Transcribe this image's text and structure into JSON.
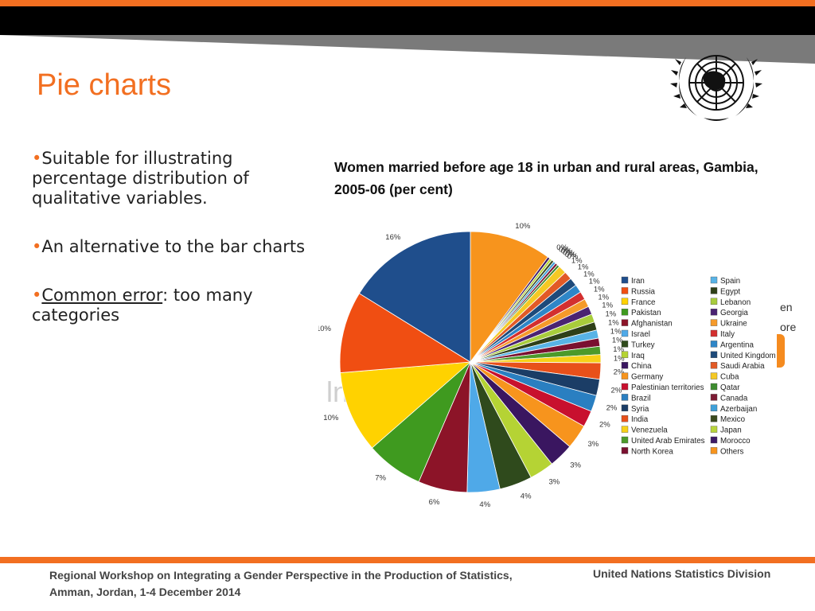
{
  "slide": {
    "title": "Pie charts",
    "bullets": [
      {
        "text": "Suitable for illustrating percentage distribution of qualitative variables."
      },
      {
        "text": "An alternative to the bar charts"
      },
      {
        "underlined": "Common error",
        "rest": ": too many categories"
      }
    ],
    "behind_fragments": [
      "en",
      "ore"
    ],
    "watermark": "ln.wor",
    "footer": {
      "left": "Regional Workshop on Integrating a Gender Perspective in the Production of Statistics, Amman, Jordan, 1-4 December 2014",
      "right": "United Nations Statistics Division"
    },
    "accent_color": "#f26f21"
  },
  "chart_data": {
    "type": "pie",
    "title": "Women married before age 18 in urban and rural areas, Gambia, 2005-06 (per cent)",
    "categories": [
      "Others",
      "Iran",
      "Russia",
      "France",
      "Pakistan",
      "Afghanistan",
      "Israel",
      "Turkey",
      "Iraq",
      "China",
      "Germany",
      "Palestinian territories",
      "Brazil",
      "Syria",
      "India",
      "Venezuela",
      "United Arab Emirates",
      "North Korea",
      "Spain",
      "Egypt",
      "Lebanon",
      "Georgia",
      "Ukraine",
      "Italy",
      "Argentina",
      "United Kingdom",
      "Saudi Arabia",
      "Cuba",
      "Qatar",
      "Canada",
      "Azerbaijan",
      "Mexico",
      "Japan",
      "Morocco"
    ],
    "values": [
      10,
      16,
      10,
      10,
      7,
      6,
      4,
      4,
      3,
      3,
      3,
      2,
      2,
      2,
      2,
      1,
      1,
      1,
      1,
      1,
      1,
      1,
      1,
      1,
      1,
      1,
      1,
      1,
      0,
      0,
      0,
      0,
      0,
      0
    ],
    "slice_order": [
      "Others",
      "Morocco",
      "Japan",
      "Mexico",
      "Azerbaijan",
      "Canada",
      "Qatar",
      "Cuba",
      "Saudi Arabia",
      "United Kingdom",
      "Argentina",
      "Italy",
      "Ukraine",
      "Georgia",
      "Lebanon",
      "Egypt",
      "Spain",
      "North Korea",
      "United Arab Emirates",
      "Venezuela",
      "India",
      "Syria",
      "Brazil",
      "Palestinian territories",
      "Germany",
      "China",
      "Iraq",
      "Turkey",
      "Israel",
      "Afghanistan",
      "Pakistan",
      "France",
      "Russia",
      "Iran"
    ],
    "legend_columns": [
      [
        "Iran",
        "Russia",
        "France",
        "Pakistan",
        "Afghanistan",
        "Israel",
        "Turkey",
        "Iraq",
        "China",
        "Germany",
        "Palestinian territories",
        "Brazil",
        "Syria",
        "India",
        "Venezuela",
        "United Arab Emirates",
        "North Korea"
      ],
      [
        "Spain",
        "Egypt",
        "Lebanon",
        "Georgia",
        "Ukraine",
        "Italy",
        "Argentina",
        "United Kingdom",
        "Saudi Arabia",
        "Cuba",
        "Qatar",
        "Canada",
        "Azerbaijan",
        "Mexico",
        "Japan",
        "Morocco",
        "Others"
      ]
    ],
    "colors": {
      "Iran": "#1f4e8c",
      "Russia": "#f04e12",
      "France": "#ffd200",
      "Pakistan": "#3f9a1f",
      "Afghanistan": "#8c1428",
      "Israel": "#4fa9e8",
      "Turkey": "#2f4a1c",
      "Iraq": "#b5d334",
      "China": "#3a1660",
      "Germany": "#f7941d",
      "Palestinian territories": "#c8102e",
      "Brazil": "#2a7fc1",
      "Syria": "#1b3d66",
      "India": "#e8501a",
      "Venezuela": "#f7d117",
      "United Arab Emirates": "#4c9a2a",
      "North Korea": "#7a1030",
      "Spain": "#58b3e6",
      "Egypt": "#2e3f18",
      "Lebanon": "#a8cc3c",
      "Georgia": "#4a2372",
      "Ukraine": "#f59a2a",
      "Italy": "#d32f2f",
      "Argentina": "#2e86c8",
      "United Kingdom": "#1e4a7a",
      "Saudi Arabia": "#e25a26",
      "Cuba": "#f5c924",
      "Qatar": "#3d8c2f",
      "Canada": "#7c1a33",
      "Azerbaijan": "#3fa0d8",
      "Mexico": "#3a4a1e",
      "Japan": "#b8d43a",
      "Morocco": "#3c1a66",
      "Others": "#f7941d"
    },
    "legend": "right",
    "grid": false
  }
}
